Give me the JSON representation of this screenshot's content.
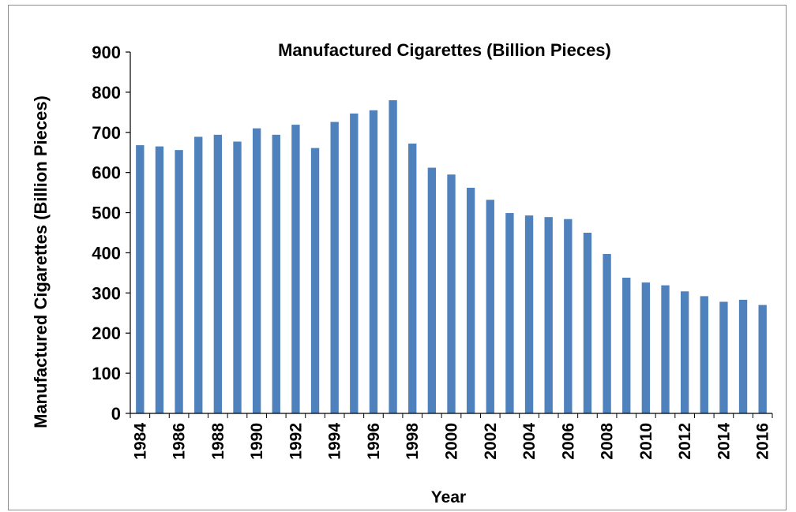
{
  "chart_data": {
    "type": "bar",
    "title": "Manufactured Cigarettes (Billion Pieces)",
    "xlabel": "Year",
    "ylabel": "Manufactured Cigarettes (Billion Pieces)",
    "ylim": [
      0,
      900
    ],
    "yticks": [
      "0",
      "100",
      "200",
      "300",
      "400",
      "500",
      "600",
      "700",
      "800",
      "900"
    ],
    "grid": false,
    "legend": "none",
    "bar_color": "#4f81bd",
    "categories": [
      "1984",
      "1985",
      "1986",
      "1987",
      "1988",
      "1989",
      "1990",
      "1991",
      "1992",
      "1993",
      "1994",
      "1995",
      "1996",
      "1997",
      "1998",
      "1999",
      "2000",
      "2001",
      "2002",
      "2003",
      "2004",
      "2005",
      "2006",
      "2007",
      "2008",
      "2009",
      "2010",
      "2011",
      "2012",
      "2013",
      "2014",
      "2015",
      "2016"
    ],
    "xtick_labels": [
      "1984",
      "1986",
      "1988",
      "1990",
      "1992",
      "1994",
      "1996",
      "1998",
      "2000",
      "2002",
      "2004",
      "2006",
      "2008",
      "2010",
      "2012",
      "2014",
      "2016"
    ],
    "values": [
      668,
      665,
      656,
      689,
      694,
      677,
      710,
      694,
      719,
      661,
      726,
      747,
      755,
      780,
      672,
      612,
      595,
      562,
      532,
      499,
      493,
      489,
      484,
      450,
      397,
      338,
      326,
      319,
      304,
      292,
      278,
      283,
      270
    ]
  }
}
